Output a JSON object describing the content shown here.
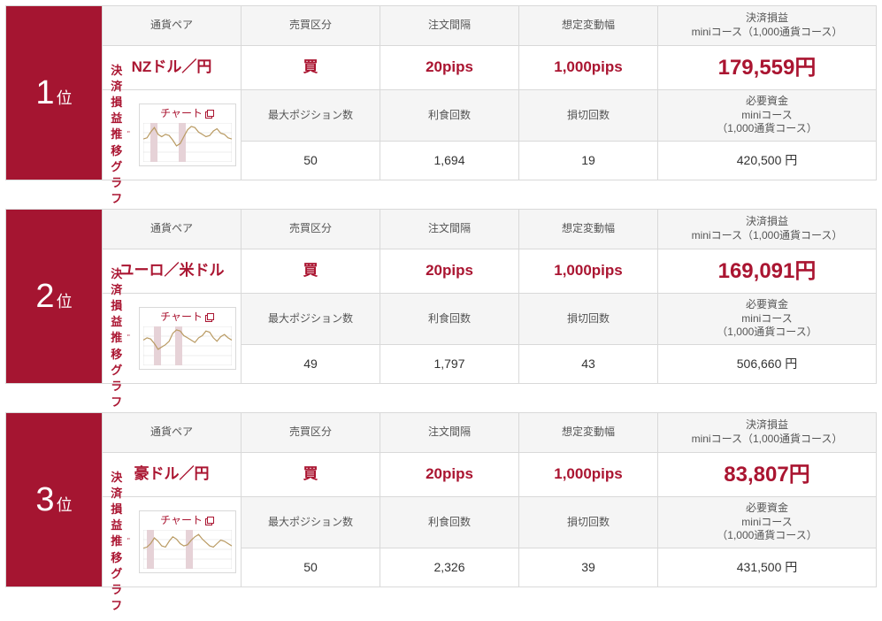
{
  "colors": {
    "rank_bg": "#a51531",
    "accent": "#aa1531",
    "card_border": "#d9d9d9",
    "header_bg": "#f5f5f5",
    "text": "#333333",
    "chart_bar_fill": "#e6d2d7",
    "chart_line": "#b99a62",
    "chart_border": "#cfcfcf"
  },
  "labels": {
    "pair": "通貨ペア",
    "side": "売買区分",
    "interval": "注文間隔",
    "range": "想定変動幅",
    "pl": "決済損益\nminiコース（1,000通貨コース）",
    "max_pos": "最大ポジション数",
    "tp_count": "利食回数",
    "sl_count": "損切回数",
    "margin": "必要資金\nminiコース\n（1,000通貨コース）",
    "pl_graph": "決済損益推移\nグラフ",
    "chart": "チャート",
    "rank_suffix": "位"
  },
  "rows": [
    {
      "rank": "1",
      "pair": "NZドル／円",
      "side": "買",
      "interval": "20pips",
      "range": "1,000pips",
      "pl": "179,559円",
      "max_pos": "50",
      "tp_count": "1,694",
      "sl_count": "19",
      "margin": "420,500 円",
      "chart": {
        "bars": [
          [
            2,
            4
          ],
          [
            10,
            12
          ]
        ],
        "line": [
          20,
          21,
          26,
          30,
          24,
          22,
          24,
          23,
          19,
          14,
          16,
          22,
          28,
          31,
          30,
          26,
          24,
          22,
          23,
          27,
          29,
          25,
          24,
          21,
          20
        ]
      }
    },
    {
      "rank": "2",
      "pair": "ユーロ／米ドル",
      "side": "買",
      "interval": "20pips",
      "range": "1,000pips",
      "pl": "169,091円",
      "max_pos": "49",
      "tp_count": "1,797",
      "sl_count": "43",
      "margin": "506,660 円",
      "chart": {
        "bars": [
          [
            3,
            5
          ],
          [
            9,
            11
          ]
        ],
        "line": [
          22,
          24,
          23,
          19,
          14,
          16,
          18,
          21,
          28,
          31,
          30,
          26,
          24,
          22,
          20,
          24,
          26,
          30,
          29,
          24,
          21,
          25,
          27,
          24,
          22
        ]
      }
    },
    {
      "rank": "3",
      "pair": "豪ドル／円",
      "side": "買",
      "interval": "20pips",
      "range": "1,000pips",
      "pl": "83,807円",
      "max_pos": "50",
      "tp_count": "2,326",
      "sl_count": "39",
      "margin": "431,500 円",
      "chart": {
        "bars": [
          [
            1,
            3
          ],
          [
            12,
            14
          ]
        ],
        "line": [
          18,
          19,
          22,
          27,
          24,
          20,
          19,
          24,
          28,
          26,
          22,
          20,
          21,
          25,
          28,
          30,
          26,
          23,
          20,
          19,
          22,
          25,
          24,
          22,
          20
        ]
      }
    }
  ]
}
